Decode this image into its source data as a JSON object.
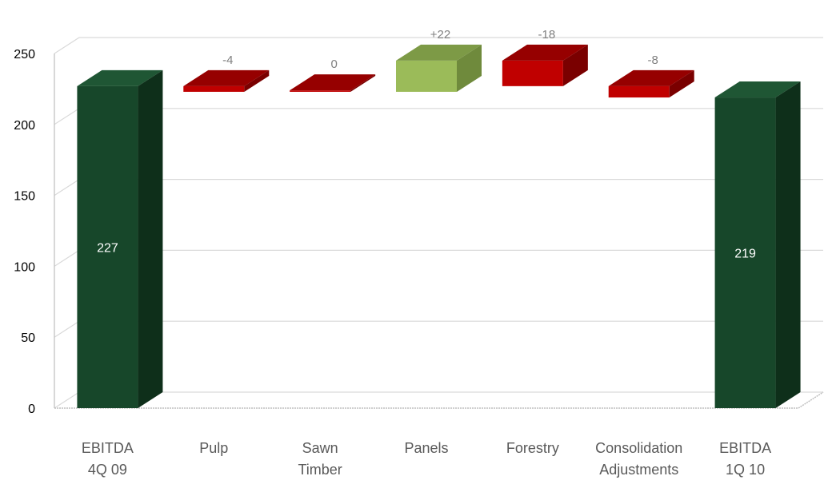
{
  "chart_data": {
    "type": "bar",
    "subtype": "waterfall-3d",
    "title": "",
    "xlabel": "",
    "ylabel": "",
    "ylim": [
      0,
      250
    ],
    "yticks": [
      0,
      50,
      100,
      150,
      200,
      250
    ],
    "grid": true,
    "legend": "none",
    "categories": [
      [
        "EBITDA",
        "4Q 09"
      ],
      [
        "Pulp"
      ],
      [
        "Sawn",
        "Timber"
      ],
      [
        "Panels"
      ],
      [
        "Forestry"
      ],
      [
        "Consolidation",
        "Adjustments"
      ],
      [
        "EBITDA",
        "1Q 10"
      ]
    ],
    "bars": [
      {
        "kind": "total",
        "bottom": 0,
        "top": 227,
        "label": "227",
        "label_position": "inside"
      },
      {
        "kind": "decrease",
        "bottom": 223,
        "top": 227,
        "label": "-4",
        "label_position": "above"
      },
      {
        "kind": "decrease",
        "bottom": 223,
        "top": 224,
        "label": "0",
        "label_position": "above"
      },
      {
        "kind": "increase",
        "bottom": 223,
        "top": 245,
        "label": "+22",
        "label_position": "above"
      },
      {
        "kind": "decrease",
        "bottom": 227,
        "top": 245,
        "label": "-18",
        "label_position": "above"
      },
      {
        "kind": "decrease",
        "bottom": 219,
        "top": 227,
        "label": "-8",
        "label_position": "above"
      },
      {
        "kind": "total",
        "bottom": 0,
        "top": 219,
        "label": "219",
        "label_position": "inside"
      }
    ],
    "colors": {
      "total": {
        "front": "#17472a",
        "side": "#0e2f1a",
        "top": "#1f5634"
      },
      "increase": {
        "front": "#9bbb59",
        "side": "#6f8a3c",
        "top": "#7d9a46"
      },
      "decrease": {
        "front": "#c00000",
        "side": "#7a0000",
        "top": "#960000"
      },
      "grid": "#d9d9d9",
      "axis": "#bfbfbf"
    }
  }
}
